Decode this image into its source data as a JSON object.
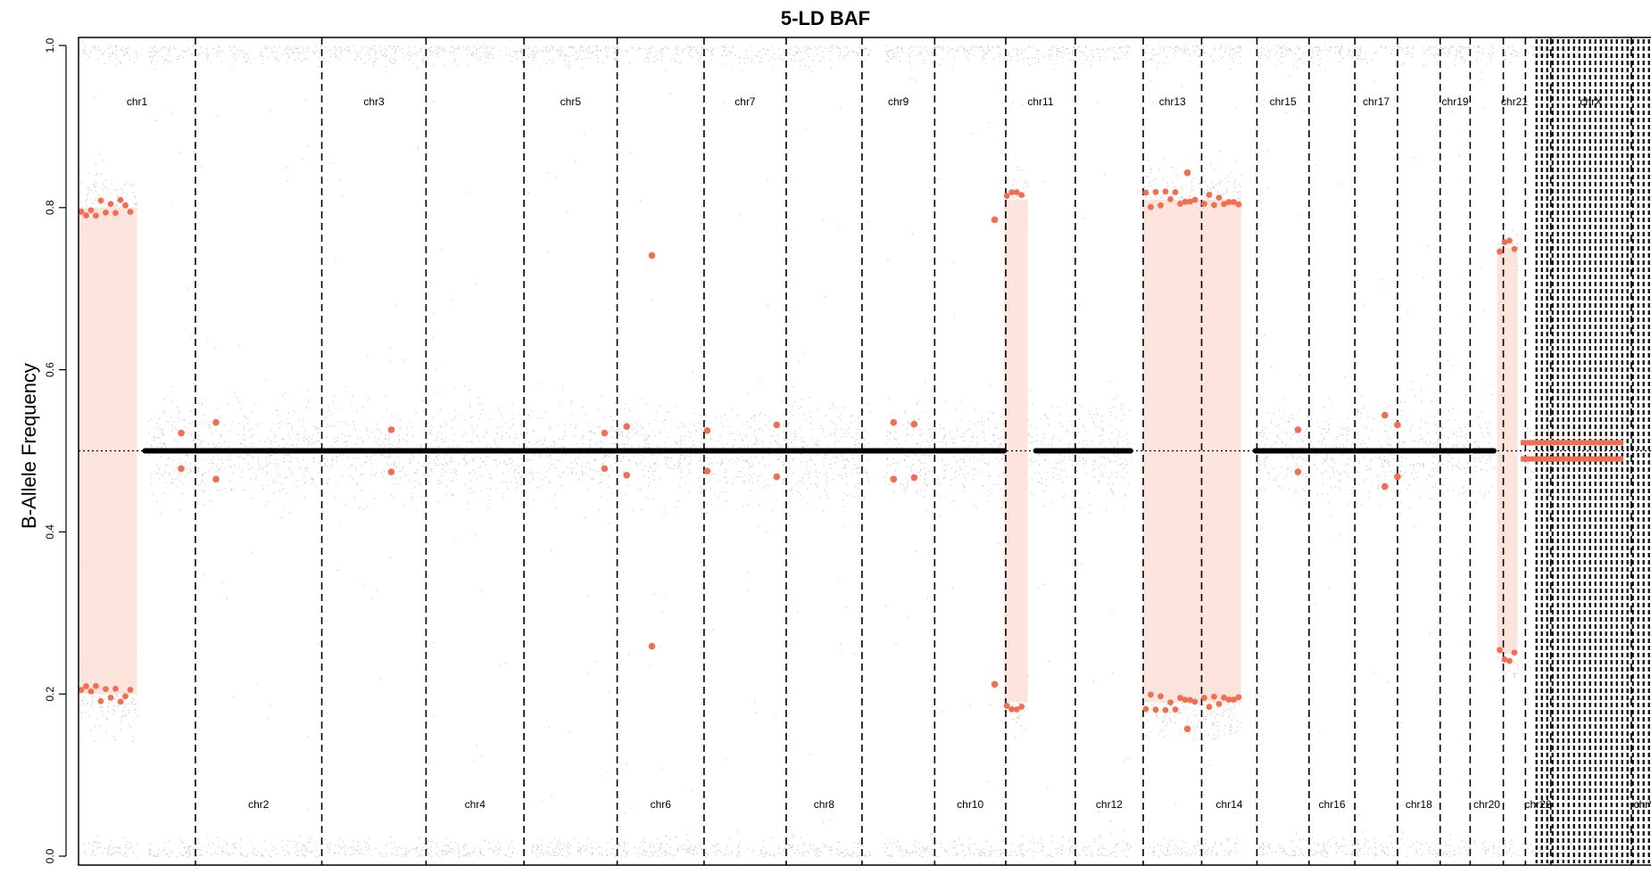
{
  "chart_data": {
    "type": "scatter",
    "title": "5-LD BAF",
    "ylabel": "B-Allele Frequency",
    "xlabel": "",
    "ylim": [
      0,
      1
    ],
    "yticks": [
      "0.0",
      "0.2",
      "0.4",
      "0.6",
      "0.8",
      "1.0"
    ],
    "grid": false,
    "reference_line": {
      "y": 0.5,
      "style": "dotted"
    },
    "colors": {
      "raw_points": "#c8c8c8",
      "segment_points": "#f26e52",
      "imbalanced_band": "#fde0d8",
      "balanced_segment": "#000000",
      "boundary": "#000000"
    },
    "chromosomes": [
      {
        "name": "chr1",
        "start": 0.0,
        "end": 7.4,
        "label_row": "top"
      },
      {
        "name": "chr2",
        "start": 7.4,
        "end": 15.4,
        "label_row": "bottom"
      },
      {
        "name": "chr3",
        "start": 15.4,
        "end": 22.0,
        "label_row": "top"
      },
      {
        "name": "chr4",
        "start": 22.0,
        "end": 28.2,
        "label_row": "bottom"
      },
      {
        "name": "chr5",
        "start": 28.2,
        "end": 34.1,
        "label_row": "top"
      },
      {
        "name": "chr6",
        "start": 34.1,
        "end": 39.6,
        "label_row": "bottom"
      },
      {
        "name": "chr7",
        "start": 39.6,
        "end": 44.8,
        "label_row": "top"
      },
      {
        "name": "chr8",
        "start": 44.8,
        "end": 49.6,
        "label_row": "bottom"
      },
      {
        "name": "chr9",
        "start": 49.6,
        "end": 54.2,
        "label_row": "top"
      },
      {
        "name": "chr10",
        "start": 54.2,
        "end": 58.7,
        "label_row": "bottom"
      },
      {
        "name": "chr11",
        "start": 58.7,
        "end": 63.1,
        "label_row": "top"
      },
      {
        "name": "chr12",
        "start": 63.1,
        "end": 67.4,
        "label_row": "bottom"
      },
      {
        "name": "chr13",
        "start": 67.4,
        "end": 71.1,
        "label_row": "top"
      },
      {
        "name": "chr14",
        "start": 71.1,
        "end": 74.6,
        "label_row": "bottom"
      },
      {
        "name": "chr15",
        "start": 74.6,
        "end": 77.9,
        "label_row": "top"
      },
      {
        "name": "chr16",
        "start": 77.9,
        "end": 80.8,
        "label_row": "bottom"
      },
      {
        "name": "chr17",
        "start": 80.8,
        "end": 83.5,
        "label_row": "top"
      },
      {
        "name": "chr18",
        "start": 83.5,
        "end": 86.2,
        "label_row": "bottom"
      },
      {
        "name": "chr19",
        "start": 86.2,
        "end": 88.1,
        "label_row": "top"
      },
      {
        "name": "chr20",
        "start": 88.1,
        "end": 90.2,
        "label_row": "bottom"
      },
      {
        "name": "chr21",
        "start": 90.2,
        "end": 91.6,
        "label_row": "top"
      },
      {
        "name": "chr22",
        "start": 91.6,
        "end": 93.2,
        "label_row": "bottom"
      },
      {
        "name": "chrX",
        "start": 93.2,
        "end": 98.3,
        "label_row": "top"
      },
      {
        "name": "chrY",
        "start": 98.3,
        "end": 100.0,
        "label_row": "bottom"
      }
    ],
    "raw_coverage": [
      {
        "start": 0.0,
        "end": 3.7,
        "allelic": "imbalanced",
        "bafs": [
          0.2,
          0.8
        ],
        "spread": 0.025
      },
      {
        "start": 4.4,
        "end": 24.1,
        "allelic": "balanced",
        "spread": 0.03
      },
      {
        "start": 24.3,
        "end": 50.1,
        "allelic": "balanced",
        "spread": 0.03
      },
      {
        "start": 51.0,
        "end": 58.6,
        "allelic": "balanced",
        "spread": 0.03
      },
      {
        "start": 58.6,
        "end": 60.1,
        "allelic": "imbalanced",
        "bafs": [
          0.19,
          0.81
        ],
        "spread": 0.02
      },
      {
        "start": 60.1,
        "end": 66.6,
        "allelic": "balanced",
        "spread": 0.03
      },
      {
        "start": 67.4,
        "end": 71.1,
        "allelic": "imbalanced",
        "bafs": [
          0.19,
          0.81
        ],
        "spread": 0.022
      },
      {
        "start": 71.1,
        "end": 73.6,
        "allelic": "imbalanced",
        "bafs": [
          0.19,
          0.81
        ],
        "spread": 0.022
      },
      {
        "start": 74.5,
        "end": 88.1,
        "allelic": "balanced",
        "spread": 0.03
      },
      {
        "start": 88.3,
        "end": 89.6,
        "allelic": "balanced",
        "spread": 0.03
      },
      {
        "start": 89.8,
        "end": 91.1,
        "allelic": "imbalanced",
        "bafs": [
          0.25,
          0.75
        ],
        "spread": 0.018
      },
      {
        "start": 91.4,
        "end": 98.3,
        "allelic": "balanced",
        "spread": 0.03
      }
    ],
    "imbalanced_segments": [
      {
        "start": 0.0,
        "end": 3.7,
        "low": 0.2,
        "high": 0.8
      },
      {
        "start": 58.6,
        "end": 60.1,
        "low": 0.19,
        "high": 0.81
      },
      {
        "start": 67.4,
        "end": 71.1,
        "low": 0.19,
        "high": 0.81
      },
      {
        "start": 71.1,
        "end": 73.6,
        "low": 0.19,
        "high": 0.81
      },
      {
        "start": 89.8,
        "end": 91.1,
        "low": 0.25,
        "high": 0.75
      }
    ],
    "balanced_segments": [
      {
        "start": 4.2,
        "end": 58.6,
        "baf": 0.5
      },
      {
        "start": 60.6,
        "end": 66.6,
        "baf": 0.5
      },
      {
        "start": 74.5,
        "end": 88.1,
        "baf": 0.5
      },
      {
        "start": 88.3,
        "end": 89.6,
        "baf": 0.5
      }
    ],
    "chrX_segment": {
      "start": 91.3,
      "end": 97.8,
      "low": 0.49,
      "high": 0.51
    },
    "outlier_points": [
      {
        "x": 6.5,
        "y": 0.522
      },
      {
        "x": 6.5,
        "y": 0.478
      },
      {
        "x": 8.7,
        "y": 0.535
      },
      {
        "x": 8.7,
        "y": 0.465
      },
      {
        "x": 19.8,
        "y": 0.526
      },
      {
        "x": 19.8,
        "y": 0.474
      },
      {
        "x": 33.3,
        "y": 0.522
      },
      {
        "x": 33.3,
        "y": 0.478
      },
      {
        "x": 34.7,
        "y": 0.53
      },
      {
        "x": 34.7,
        "y": 0.47
      },
      {
        "x": 36.3,
        "y": 0.741
      },
      {
        "x": 36.3,
        "y": 0.259
      },
      {
        "x": 39.8,
        "y": 0.525
      },
      {
        "x": 39.8,
        "y": 0.475
      },
      {
        "x": 44.2,
        "y": 0.532
      },
      {
        "x": 44.2,
        "y": 0.468
      },
      {
        "x": 51.6,
        "y": 0.535
      },
      {
        "x": 51.6,
        "y": 0.465
      },
      {
        "x": 52.9,
        "y": 0.533
      },
      {
        "x": 52.9,
        "y": 0.467
      },
      {
        "x": 58.0,
        "y": 0.212
      },
      {
        "x": 58.0,
        "y": 0.785
      },
      {
        "x": 70.2,
        "y": 0.157
      },
      {
        "x": 70.2,
        "y": 0.843
      },
      {
        "x": 77.2,
        "y": 0.526
      },
      {
        "x": 77.2,
        "y": 0.474
      },
      {
        "x": 82.7,
        "y": 0.544
      },
      {
        "x": 82.7,
        "y": 0.456
      },
      {
        "x": 83.5,
        "y": 0.532
      },
      {
        "x": 83.5,
        "y": 0.468
      }
    ],
    "chrY_pattern": {
      "start": 92.3,
      "end": 100.0
    }
  }
}
